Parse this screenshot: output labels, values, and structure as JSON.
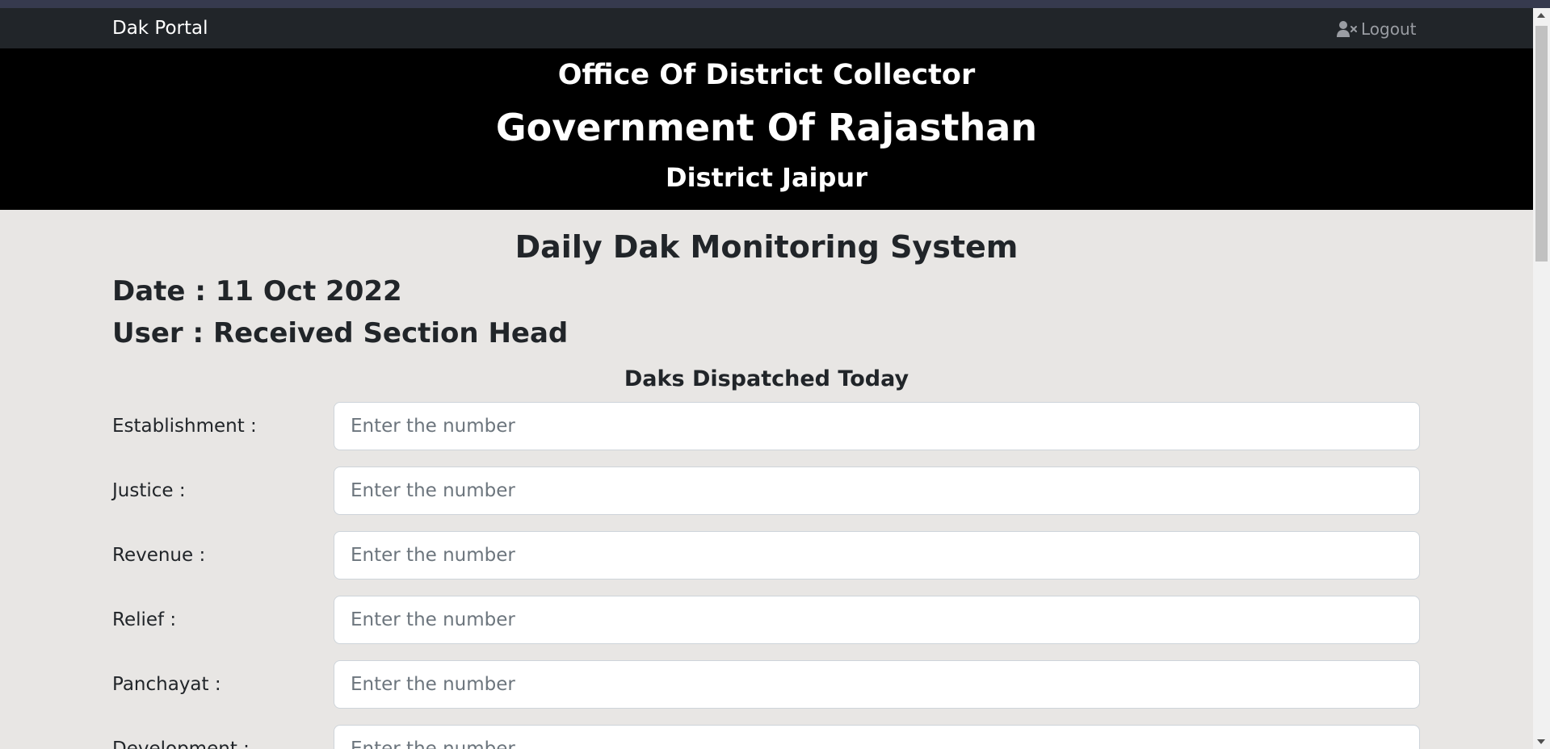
{
  "navbar": {
    "brand": "Dak Portal",
    "logout_label": "Logout",
    "logout_icon": "user-x-icon",
    "background": "#212529"
  },
  "banner": {
    "line1": "Office Of District Collector",
    "line2": "Government Of Rajasthan",
    "line3": "District Jaipur",
    "background": "#000000"
  },
  "main": {
    "system_title": "Daily Dak Monitoring System",
    "date_line": "Date : 11 Oct 2022",
    "user_line": "User : Received Section Head",
    "section_title": "Daks Dispatched Today"
  },
  "form": {
    "rows": [
      {
        "label": "Establishment :",
        "placeholder": "Enter the number",
        "value": ""
      },
      {
        "label": "Justice :",
        "placeholder": "Enter the number",
        "value": ""
      },
      {
        "label": "Revenue :",
        "placeholder": "Enter the number",
        "value": ""
      },
      {
        "label": "Relief :",
        "placeholder": "Enter the number",
        "value": ""
      },
      {
        "label": "Panchayat :",
        "placeholder": "Enter the number",
        "value": ""
      },
      {
        "label": "Development :",
        "placeholder": "Enter the number",
        "value": ""
      }
    ]
  },
  "colors": {
    "page_background": "#e8e6e4",
    "text": "#212529",
    "placeholder": "#6c757d",
    "input_border": "#ced4da"
  }
}
